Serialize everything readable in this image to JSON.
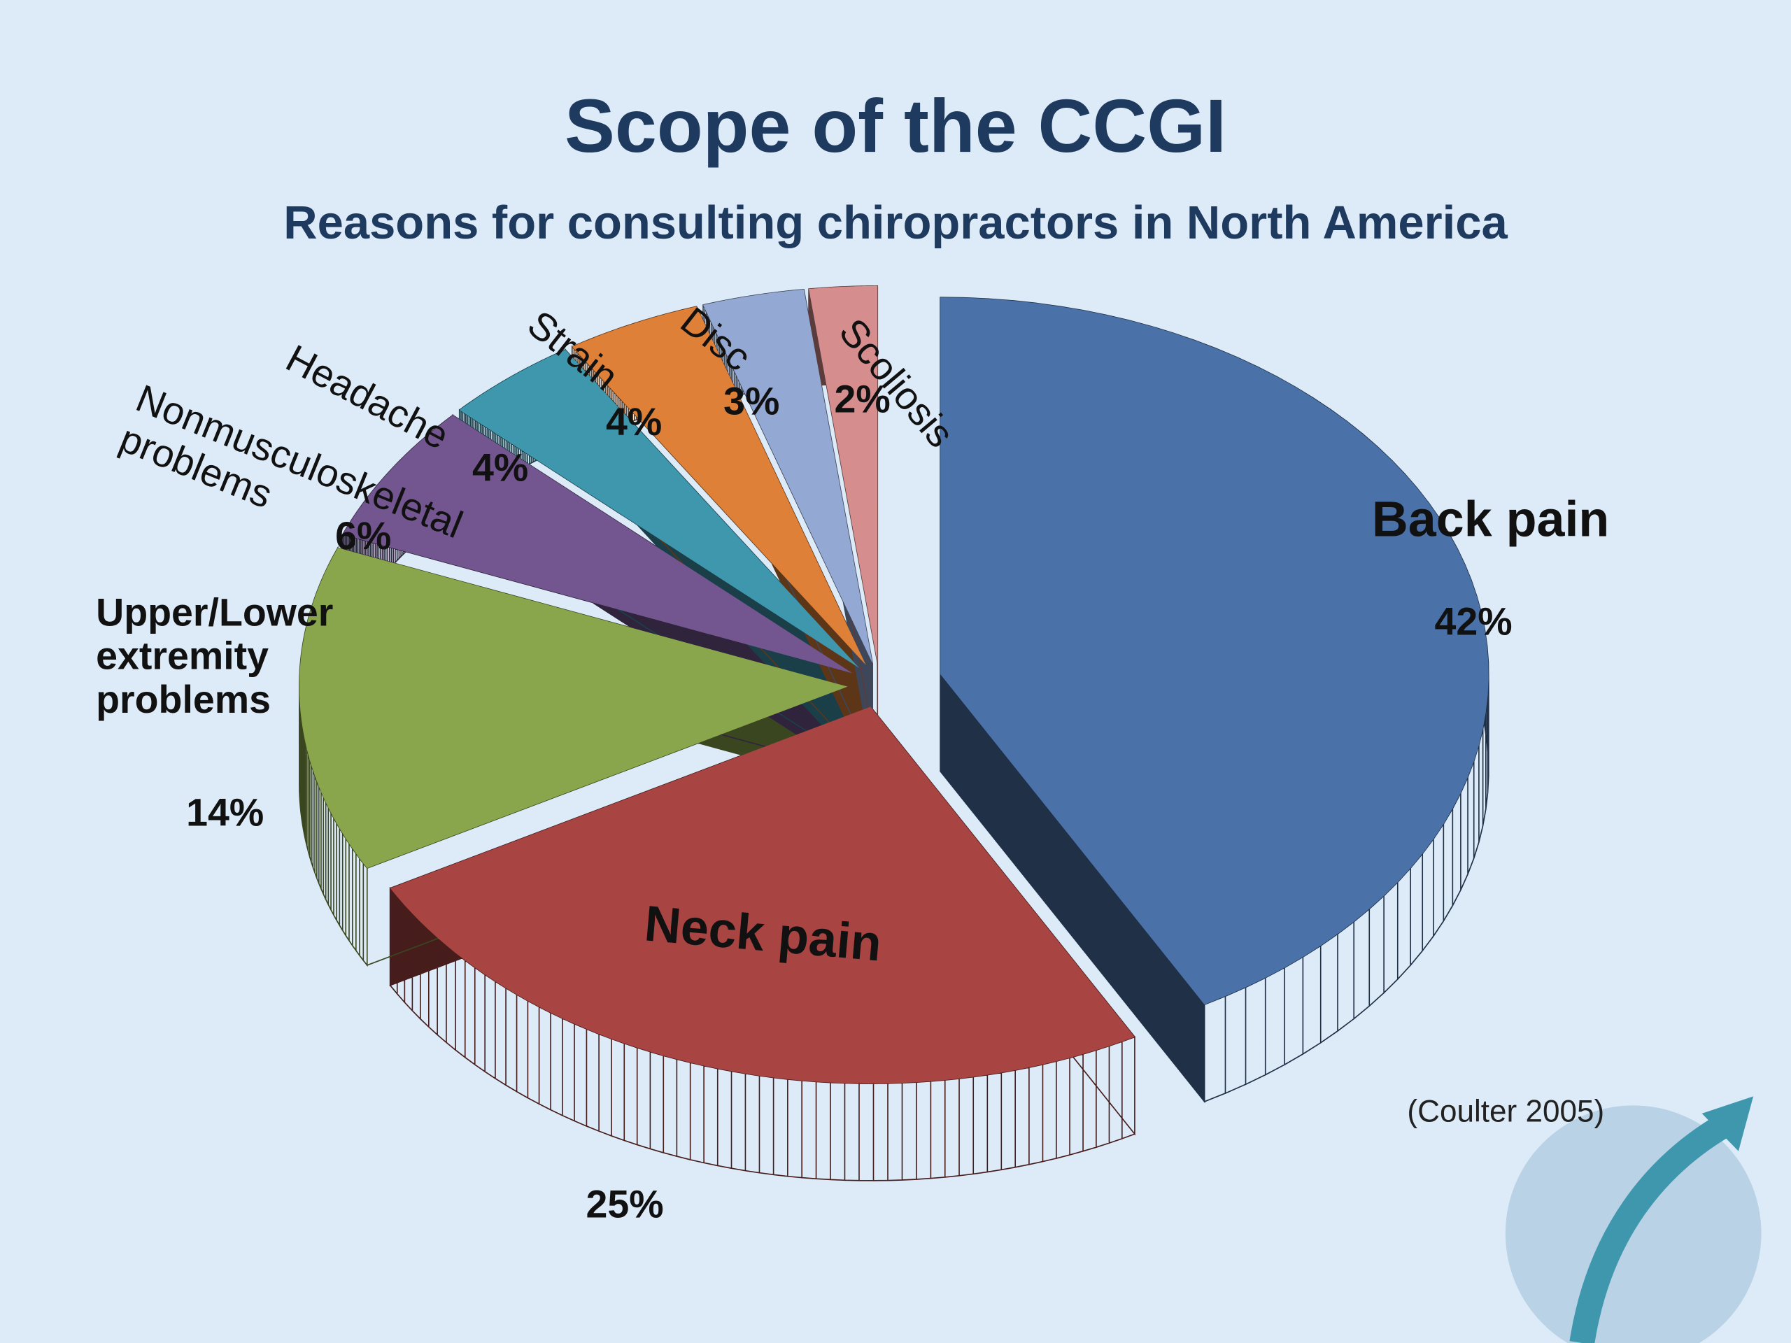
{
  "chart_data": {
    "type": "pie",
    "title": "Scope of the CCGI",
    "subtitle": "Reasons for consulting chiropractors in North America",
    "source": "(Coulter 2005)",
    "categories": [
      "Back pain",
      "Neck pain",
      "Upper/Lower extremity problems",
      "Nonmusculoskeletal problems",
      "Headache",
      "Strain",
      "Disc",
      "Scoliosis"
    ],
    "values": [
      42,
      25,
      14,
      6,
      4,
      4,
      3,
      2
    ],
    "value_labels": [
      "42%",
      "25%",
      "14%",
      "6%",
      "4%",
      "4%",
      "3%",
      "2%"
    ],
    "colors": [
      "#4a72a8",
      "#a84442",
      "#8aa64c",
      "#735690",
      "#3f97ad",
      "#de8038",
      "#93a9d3",
      "#d58e8d"
    ]
  }
}
